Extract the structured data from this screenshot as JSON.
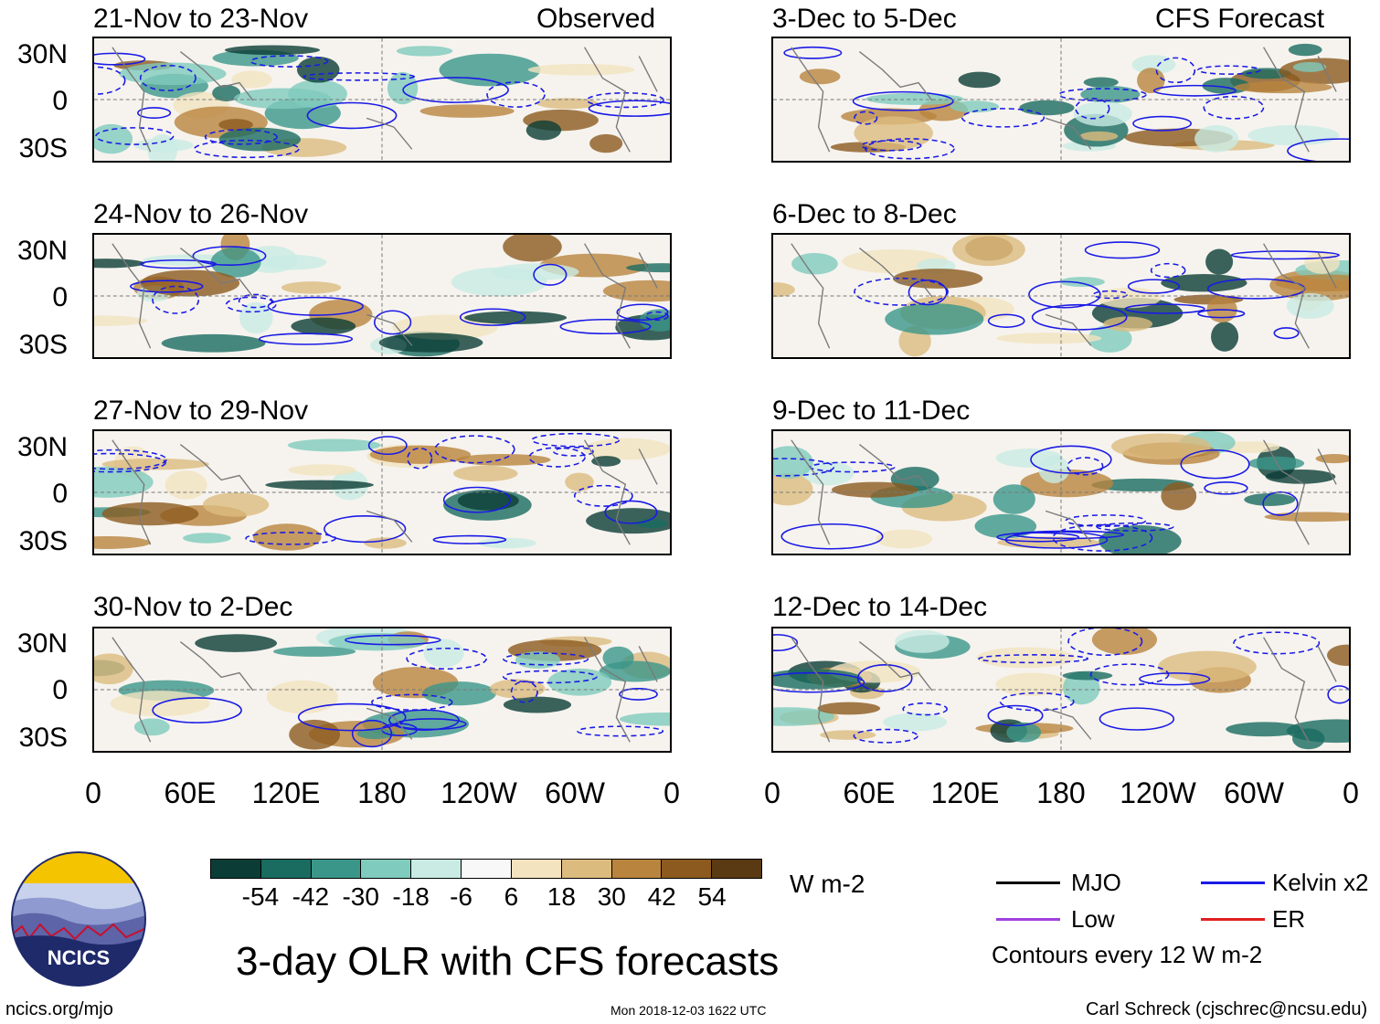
{
  "panels_observed": [
    {
      "title": "21-Nov to 23-Nov",
      "tag": "Observed"
    },
    {
      "title": "24-Nov to 26-Nov",
      "tag": ""
    },
    {
      "title": "27-Nov to 29-Nov",
      "tag": ""
    },
    {
      "title": "30-Nov to 2-Dec",
      "tag": ""
    }
  ],
  "panels_forecast": [
    {
      "title": "3-Dec to 5-Dec",
      "tag": "CFS Forecast"
    },
    {
      "title": "6-Dec to 8-Dec",
      "tag": ""
    },
    {
      "title": "9-Dec to 11-Dec",
      "tag": ""
    },
    {
      "title": "12-Dec to 14-Dec",
      "tag": ""
    }
  ],
  "lat_labels": [
    "30N",
    "0",
    "30S"
  ],
  "lon_labels": [
    "0",
    "60E",
    "120E",
    "180",
    "120W",
    "60W",
    "0"
  ],
  "colorbar": {
    "colors": [
      "#0b3d36",
      "#1a6b60",
      "#3b968a",
      "#7fcbbd",
      "#c9ebe3",
      "#f8f8f8",
      "#f3e3bf",
      "#dcbb7e",
      "#b9843e",
      "#8c5a1f",
      "#5a3a12"
    ],
    "labels": [
      "-54",
      "-42",
      "-30",
      "-18",
      "-6",
      "6",
      "18",
      "30",
      "42",
      "54"
    ],
    "units": "W m-2"
  },
  "legend": {
    "mjo": "MJO",
    "mjo_color": "#000000",
    "kelvin": "Kelvin x2",
    "kelvin_color": "#1a1ae6",
    "low": "Low",
    "low_color": "#a040e0",
    "er": "ER",
    "er_color": "#e02020",
    "contour_note": "Contours every 12 W m-2"
  },
  "main_title": "3-day OLR with CFS forecasts",
  "logo_text": "NCICS",
  "footer": {
    "url": "ncics.org/mjo",
    "timestamp": "Mon 2018-12-03 1622 UTC",
    "credit": "Carl Schreck (cjschrec@ncsu.edu)"
  }
}
